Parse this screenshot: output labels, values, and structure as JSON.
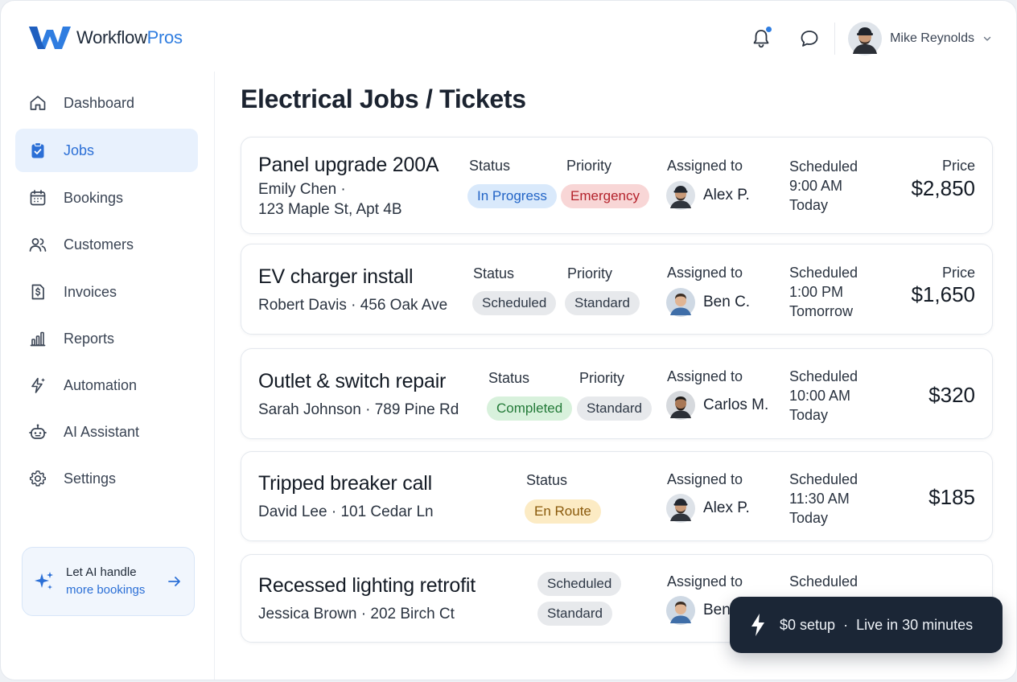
{
  "brand": {
    "name_part1": "Workflow",
    "name_part2": "Pros",
    "accent": "#2f7de0"
  },
  "header": {
    "user_name": "Mike Reynolds",
    "icons": [
      "bell-icon",
      "chat-icon",
      "chevron-down-icon"
    ]
  },
  "sidebar": {
    "items": [
      {
        "label": "Dashboard",
        "icon": "home-icon",
        "active": false
      },
      {
        "label": "Jobs",
        "icon": "clipboard-icon",
        "active": true
      },
      {
        "label": "Bookings",
        "icon": "calendar-icon",
        "active": false
      },
      {
        "label": "Customers",
        "icon": "users-icon",
        "active": false
      },
      {
        "label": "Invoices",
        "icon": "invoice-icon",
        "active": false
      },
      {
        "label": "Reports",
        "icon": "bar-chart-icon",
        "active": false
      },
      {
        "label": "Automation",
        "icon": "sparkle-bolt-icon",
        "active": false
      },
      {
        "label": "AI Assistant",
        "icon": "robot-icon",
        "active": false
      },
      {
        "label": "Settings",
        "icon": "gear-icon",
        "active": false
      }
    ],
    "ai_card": {
      "line1": "Let AI handle",
      "line2": "more bookings"
    }
  },
  "main": {
    "title": "Electrical Jobs / Tickets",
    "jobs": [
      {
        "title": "Panel upgrade 200A",
        "customer_line1": "Emily Chen ·",
        "customer_line2": "123 Maple St, Apt 4B",
        "status_label": "Status",
        "status": "In Progress",
        "priority_label": "Priority",
        "priority": "Emergency",
        "assigned_label": "Assigned to",
        "assignee": "Alex P.",
        "scheduled_label": "Scheduled",
        "time": "9:00 AM",
        "day": "Today",
        "price_label": "Price",
        "price": "$2,850"
      },
      {
        "title": "EV charger install",
        "customer_line1": "Robert Davis · 456 Oak Ave",
        "status_label": "Status",
        "status": "Scheduled",
        "priority_label": "Priority",
        "priority": "Standard",
        "assigned_label": "Assigned to",
        "assignee": "Ben C.",
        "scheduled_label": "Scheduled",
        "time": "1:00 PM",
        "day": "Tomorrow",
        "price_label": "Price",
        "price": "$1,650"
      },
      {
        "title": "Outlet & switch repair",
        "customer_line1": "Sarah Johnson · 789 Pine Rd",
        "status_label": "Status",
        "status": "Completed",
        "priority_label": "Priority",
        "priority": "Standard",
        "assigned_label": "Assigned to",
        "assignee": "Carlos M.",
        "scheduled_label": "Scheduled",
        "time": "10:00 AM",
        "day": "Today",
        "price": "$320"
      },
      {
        "title": "Tripped breaker call",
        "customer_line1": "David Lee · 101 Cedar Ln",
        "status_label": "Status",
        "status": "En Route",
        "assigned_label": "Assigned to",
        "assignee": "Alex P.",
        "scheduled_label": "Scheduled",
        "time": "11:30 AM",
        "day": "Today",
        "price": "$185"
      },
      {
        "title": "Recessed lighting retrofit",
        "customer_line1": "Jessica Brown · 202 Birch Ct",
        "status": "Scheduled",
        "priority": "Standard",
        "assigned_label": "Assigned to",
        "assignee": "Ben",
        "scheduled_label": "Scheduled"
      }
    ]
  },
  "toast": {
    "text1": "$0 setup",
    "separator": "·",
    "text2": "Live in 30 minutes",
    "icon": "lightning-icon"
  }
}
